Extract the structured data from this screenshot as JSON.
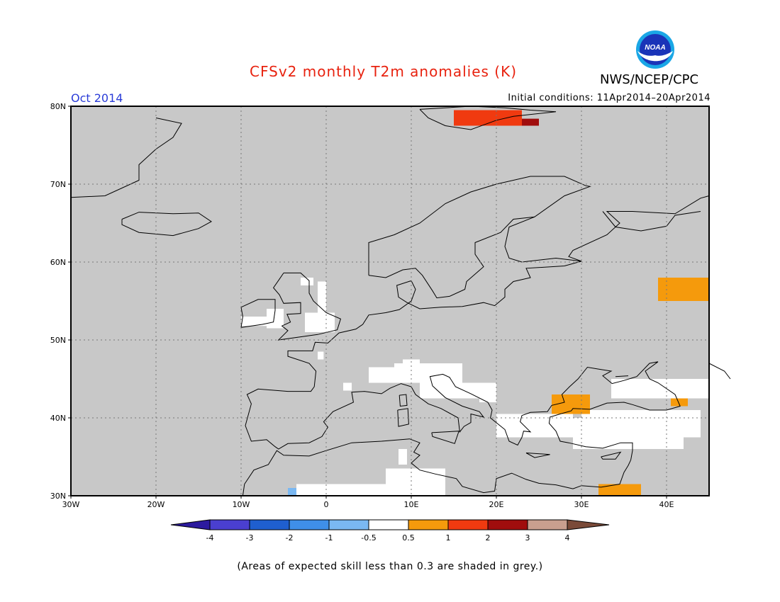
{
  "header": {
    "title": "CFSv2 monthly T2m anomalies (K)",
    "org": "NWS/NCEP/CPC",
    "logo_text": "NOAA",
    "period": "Oct 2014",
    "init_conditions": "Initial conditions: 11Apr2014–20Apr2014"
  },
  "map": {
    "lon_range": [
      -30,
      45
    ],
    "lat_range": [
      30,
      80
    ],
    "lat_labels": [
      "30N",
      "40N",
      "50N",
      "60N",
      "70N",
      "80N"
    ],
    "lon_labels": [
      "30W",
      "20W",
      "10W",
      "0",
      "10E",
      "20E",
      "30E",
      "40E"
    ],
    "background_color": "#c8c8c8",
    "white_color": "#ffffff",
    "anomaly_patches": [
      {
        "label": "Svalbard warm",
        "lon": [
          15,
          23
        ],
        "lat": [
          77.5,
          79.5
        ],
        "category": "1 to 2"
      },
      {
        "label": "Svalbard warm east",
        "lon": [
          23,
          25
        ],
        "lat": [
          77.5,
          78.4
        ],
        "category": "2 to 3"
      },
      {
        "label": "Russia warm",
        "lon": [
          39,
          45
        ],
        "lat": [
          55,
          58
        ],
        "category": "0.5 to 1"
      },
      {
        "label": "Turkey warm",
        "lon": [
          26.5,
          31
        ],
        "lat": [
          40.5,
          43
        ],
        "category": "0.5 to 1"
      },
      {
        "label": "Caucasus warm",
        "lon": [
          40.5,
          42.5
        ],
        "lat": [
          41.5,
          42.5
        ],
        "category": "0.5 to 1"
      },
      {
        "label": "Levant warm",
        "lon": [
          32,
          37
        ],
        "lat": [
          30,
          31.5
        ],
        "category": "0.5 to 1"
      },
      {
        "label": "Morocco cool",
        "lon": [
          -4.5,
          -3.5
        ],
        "lat": [
          30,
          31
        ],
        "category": "-1 to -0.5"
      }
    ]
  },
  "legend": {
    "tick_labels": [
      "-4",
      "-3",
      "-2",
      "-1",
      "-0.5",
      "0.5",
      "1",
      "2",
      "3",
      "4"
    ],
    "colors": [
      "#2c1a9e",
      "#4a3fd0",
      "#1f5fcf",
      "#3f8fe8",
      "#7ab8f2",
      "#ffffff",
      "#f59a0c",
      "#f03a10",
      "#a00d0d",
      "#c99f8f",
      "#7a4a38"
    ]
  },
  "footnote": "(Areas of expected skill less than 0.3 are shaded in grey.)"
}
